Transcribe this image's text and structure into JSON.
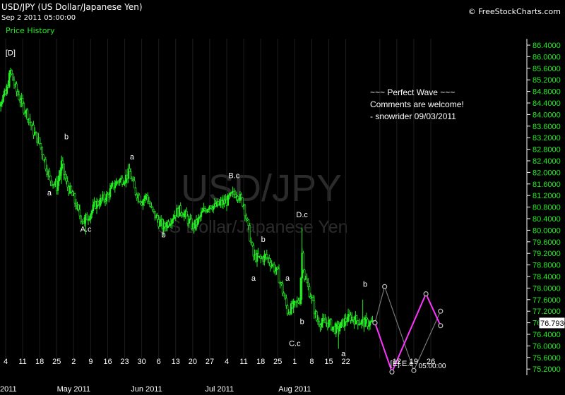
{
  "header": {
    "symbol": "USD/JPY (US Dollar/Japanese Yen)",
    "datetime": "Sep 2 2011 05:00:00",
    "indicator": "Price History",
    "copyright": "© FreeStockCharts.com"
  },
  "watermark": {
    "symbol": "USD/JPY",
    "name": "US Dollar/Japanese Yen"
  },
  "annotation": [
    "~~~ Perfect Wave ~~~",
    "Comments are welcome!",
    "- snowrider  09/03/2011"
  ],
  "chart_data": {
    "type": "candlestick",
    "title": "USD/JPY (US Dollar/Japanese Yen)",
    "ylim": [
      74.9,
      86.8
    ],
    "y_ticks": [
      {
        "value": 86.4,
        "label": "86.4000"
      },
      {
        "value": 86.0,
        "label": "86.0000"
      },
      {
        "value": 85.6,
        "label": "85.6000"
      },
      {
        "value": 85.2,
        "label": "85.2000"
      },
      {
        "value": 84.8,
        "label": "84.8000"
      },
      {
        "value": 84.4,
        "label": "84.4000"
      },
      {
        "value": 84.0,
        "label": "84.0000"
      },
      {
        "value": 83.6,
        "label": "83.6000"
      },
      {
        "value": 83.2,
        "label": "83.2000"
      },
      {
        "value": 82.8,
        "label": "82.8000"
      },
      {
        "value": 82.4,
        "label": "82.4000"
      },
      {
        "value": 82.0,
        "label": "82.0000"
      },
      {
        "value": 81.6,
        "label": "81.6000"
      },
      {
        "value": 81.2,
        "label": "81.2000"
      },
      {
        "value": 80.8,
        "label": "80.8000"
      },
      {
        "value": 80.4,
        "label": "80.4000"
      },
      {
        "value": 80.0,
        "label": "80.0000"
      },
      {
        "value": 79.6,
        "label": "79.6000"
      },
      {
        "value": 79.2,
        "label": "79.2000"
      },
      {
        "value": 78.8,
        "label": "78.8000"
      },
      {
        "value": 78.4,
        "label": "78.4000"
      },
      {
        "value": 78.0,
        "label": "78.0000"
      },
      {
        "value": 77.6,
        "label": "77.6000"
      },
      {
        "value": 77.2,
        "label": "77.2000"
      },
      {
        "value": 76.8,
        "label": "76.8000"
      },
      {
        "value": 76.4,
        "label": "76.4000"
      },
      {
        "value": 76.0,
        "label": "76.0000"
      },
      {
        "value": 75.6,
        "label": "75.6000"
      },
      {
        "value": 75.2,
        "label": "75.2000"
      }
    ],
    "last_price": {
      "value": 76.793,
      "label": "76.7930"
    },
    "x_ticks": [
      {
        "date": "2011-04-04",
        "label": "4"
      },
      {
        "date": "2011-04-11",
        "label": "11"
      },
      {
        "date": "2011-04-18",
        "label": "18"
      },
      {
        "date": "2011-04-25",
        "label": "25"
      },
      {
        "date": "2011-05-02",
        "label": "2"
      },
      {
        "date": "2011-05-09",
        "label": "9"
      },
      {
        "date": "2011-05-16",
        "label": "16"
      },
      {
        "date": "2011-05-23",
        "label": "23"
      },
      {
        "date": "2011-05-30",
        "label": "30"
      },
      {
        "date": "2011-06-06",
        "label": "6"
      },
      {
        "date": "2011-06-13",
        "label": "13"
      },
      {
        "date": "2011-06-20",
        "label": "20"
      },
      {
        "date": "2011-06-27",
        "label": "27"
      },
      {
        "date": "2011-07-04",
        "label": "4"
      },
      {
        "date": "2011-07-11",
        "label": "11"
      },
      {
        "date": "2011-07-18",
        "label": "18"
      },
      {
        "date": "2011-07-25",
        "label": "25"
      },
      {
        "date": "2011-08-01",
        "label": "1"
      },
      {
        "date": "2011-08-08",
        "label": "8"
      },
      {
        "date": "2011-08-15",
        "label": "15"
      },
      {
        "date": "2011-08-22",
        "label": "22"
      },
      {
        "date": "2011-09-05",
        "label": "05:00:00"
      },
      {
        "date": "2011-09-12",
        "label": "12"
      },
      {
        "date": "2011-09-19",
        "label": "19"
      },
      {
        "date": "2011-09-26",
        "label": "26"
      }
    ],
    "month_labels": [
      {
        "date": "2011-03-29",
        "label": "2011"
      },
      {
        "date": "2011-05-02",
        "label": "May 2011"
      },
      {
        "date": "2011-06-01",
        "label": "Jun 2011"
      },
      {
        "date": "2011-07-01",
        "label": "Jul 2011"
      },
      {
        "date": "2011-08-01",
        "label": "Aug 2011"
      }
    ],
    "price_path": [
      {
        "date": "2011-03-29",
        "price": 83.8
      },
      {
        "date": "2011-04-01",
        "price": 84.4
      },
      {
        "date": "2011-04-04",
        "price": 84.7
      },
      {
        "date": "2011-04-06",
        "price": 85.5
      },
      {
        "date": "2011-04-08",
        "price": 84.9
      },
      {
        "date": "2011-04-11",
        "price": 84.3
      },
      {
        "date": "2011-04-13",
        "price": 84.0
      },
      {
        "date": "2011-04-15",
        "price": 83.5
      },
      {
        "date": "2011-04-18",
        "price": 83.0
      },
      {
        "date": "2011-04-20",
        "price": 82.4
      },
      {
        "date": "2011-04-22",
        "price": 81.8
      },
      {
        "date": "2011-04-25",
        "price": 81.5
      },
      {
        "date": "2011-04-27",
        "price": 82.3
      },
      {
        "date": "2011-04-29",
        "price": 81.6
      },
      {
        "date": "2011-05-02",
        "price": 81.1
      },
      {
        "date": "2011-05-04",
        "price": 80.6
      },
      {
        "date": "2011-05-06",
        "price": 80.3
      },
      {
        "date": "2011-05-09",
        "price": 80.6
      },
      {
        "date": "2011-05-11",
        "price": 80.9
      },
      {
        "date": "2011-05-13",
        "price": 81.0
      },
      {
        "date": "2011-05-16",
        "price": 81.2
      },
      {
        "date": "2011-05-18",
        "price": 81.5
      },
      {
        "date": "2011-05-20",
        "price": 81.7
      },
      {
        "date": "2011-05-23",
        "price": 81.8
      },
      {
        "date": "2011-05-25",
        "price": 82.0
      },
      {
        "date": "2011-05-27",
        "price": 81.4
      },
      {
        "date": "2011-05-30",
        "price": 81.0
      },
      {
        "date": "2011-06-01",
        "price": 81.2
      },
      {
        "date": "2011-06-03",
        "price": 80.7
      },
      {
        "date": "2011-06-06",
        "price": 80.3
      },
      {
        "date": "2011-06-08",
        "price": 80.1
      },
      {
        "date": "2011-06-10",
        "price": 80.3
      },
      {
        "date": "2011-06-13",
        "price": 80.6
      },
      {
        "date": "2011-06-15",
        "price": 80.7
      },
      {
        "date": "2011-06-17",
        "price": 80.5
      },
      {
        "date": "2011-06-20",
        "price": 80.1
      },
      {
        "date": "2011-06-22",
        "price": 80.3
      },
      {
        "date": "2011-06-24",
        "price": 80.6
      },
      {
        "date": "2011-06-27",
        "price": 80.9
      },
      {
        "date": "2011-06-29",
        "price": 80.8
      },
      {
        "date": "2011-07-01",
        "price": 80.9
      },
      {
        "date": "2011-07-04",
        "price": 81.0
      },
      {
        "date": "2011-07-06",
        "price": 81.2
      },
      {
        "date": "2011-07-08",
        "price": 81.3
      },
      {
        "date": "2011-07-11",
        "price": 80.9
      },
      {
        "date": "2011-07-13",
        "price": 80.0
      },
      {
        "date": "2011-07-15",
        "price": 79.1
      },
      {
        "date": "2011-07-18",
        "price": 79.0
      },
      {
        "date": "2011-07-20",
        "price": 79.1
      },
      {
        "date": "2011-07-22",
        "price": 78.9
      },
      {
        "date": "2011-07-25",
        "price": 78.5
      },
      {
        "date": "2011-07-27",
        "price": 77.9
      },
      {
        "date": "2011-07-29",
        "price": 77.2
      },
      {
        "date": "2011-08-01",
        "price": 77.4
      },
      {
        "date": "2011-08-03",
        "price": 77.6
      },
      {
        "date": "2011-08-04",
        "price": 79.2
      },
      {
        "date": "2011-08-05",
        "price": 78.4
      },
      {
        "date": "2011-08-08",
        "price": 77.6
      },
      {
        "date": "2011-08-10",
        "price": 76.9
      },
      {
        "date": "2011-08-12",
        "price": 76.8
      },
      {
        "date": "2011-08-15",
        "price": 76.8
      },
      {
        "date": "2011-08-17",
        "price": 76.6
      },
      {
        "date": "2011-08-19",
        "price": 76.6
      },
      {
        "date": "2011-08-22",
        "price": 76.9
      },
      {
        "date": "2011-08-24",
        "price": 77.0
      },
      {
        "date": "2011-08-26",
        "price": 76.9
      },
      {
        "date": "2011-08-29",
        "price": 76.8
      },
      {
        "date": "2011-08-31",
        "price": 76.8
      },
      {
        "date": "2011-09-02",
        "price": 76.79
      }
    ],
    "wave_labels": [
      {
        "text": "[D]",
        "date": "2011-04-06",
        "price": 86.05
      },
      {
        "text": "b",
        "date": "2011-04-29",
        "price": 83.15
      },
      {
        "text": "a",
        "date": "2011-04-22",
        "price": 81.2
      },
      {
        "text": "A.c",
        "date": "2011-05-07",
        "price": 79.95
      },
      {
        "text": "a",
        "date": "2011-05-26",
        "price": 82.45
      },
      {
        "text": "b",
        "date": "2011-06-08",
        "price": 79.75
      },
      {
        "text": "B.c",
        "date": "2011-07-07",
        "price": 81.8
      },
      {
        "text": "b",
        "date": "2011-07-19",
        "price": 79.6
      },
      {
        "text": "a",
        "date": "2011-07-15",
        "price": 78.25
      },
      {
        "text": "D.c",
        "date": "2011-08-04",
        "price": 80.45
      },
      {
        "text": "a",
        "date": "2011-07-29",
        "price": 78.25
      },
      {
        "text": "b",
        "date": "2011-08-04",
        "price": 76.75
      },
      {
        "text": "C.c",
        "date": "2011-08-01",
        "price": 76.0
      },
      {
        "text": "a",
        "date": "2011-08-21",
        "price": 75.65
      },
      {
        "text": "b",
        "date": "2011-08-30",
        "price": 78.05
      },
      {
        "text": "[E].E.c",
        "date": "2011-09-14",
        "price": 75.3
      }
    ],
    "projection_magenta": [
      {
        "date": "2011-09-03",
        "price": 76.8
      },
      {
        "date": "2011-09-10",
        "price": 75.1
      },
      {
        "date": "2011-09-24",
        "price": 77.8
      },
      {
        "date": "2011-09-30",
        "price": 76.7
      }
    ],
    "projection_gray": [
      {
        "date": "2011-09-03",
        "price": 76.8
      },
      {
        "date": "2011-09-07",
        "price": 78.05
      },
      {
        "date": "2011-09-19",
        "price": 75.15
      },
      {
        "date": "2011-09-30",
        "price": 77.2
      }
    ],
    "colors": {
      "background": "#000000",
      "candles": "#22ee22",
      "price_labels": "#22ee22",
      "projection_magenta": "#ff33ff",
      "projection_gray": "#777777",
      "text": "#ffffff"
    }
  }
}
